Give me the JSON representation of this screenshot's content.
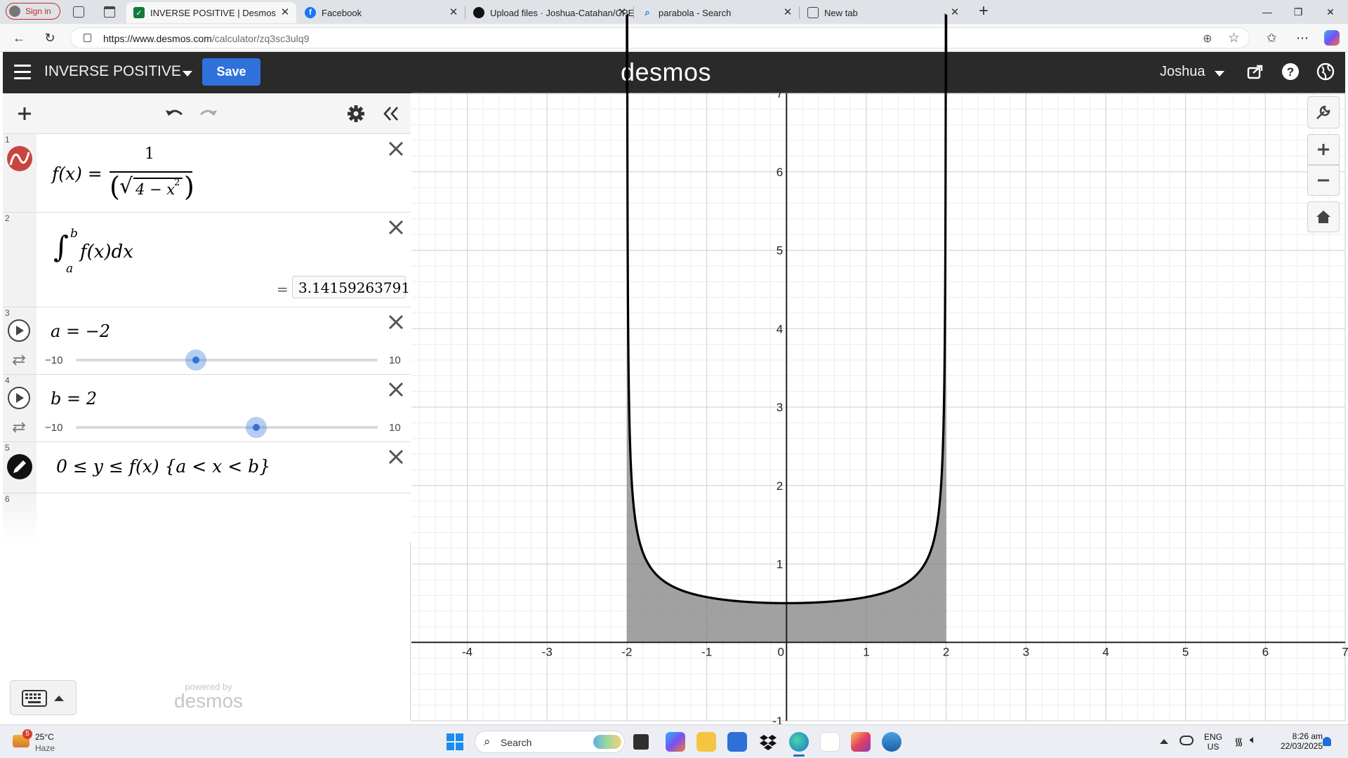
{
  "browser": {
    "sign_in_label": "Sign in",
    "tabs": [
      {
        "title": "INVERSE POSITIVE | Desmos",
        "active": true
      },
      {
        "title": "Facebook",
        "active": false
      },
      {
        "title": "Upload files · Joshua-Catahan/CPE",
        "active": false
      },
      {
        "title": "parabola - Search",
        "active": false
      },
      {
        "title": "New tab",
        "active": false
      }
    ],
    "url_host": "https://www.desmos.com",
    "url_path": "/calculator/zq3sc3ulq9"
  },
  "desmos": {
    "graph_title": "INVERSE POSITIVE",
    "save_label": "Save",
    "logo": "desmos",
    "user_name": "Joshua",
    "powered_by": "powered by",
    "powered_logo": "desmos"
  },
  "expressions": [
    {
      "num": "1",
      "lhs": "f(x) =",
      "numerator": "1",
      "radicand": "4 − x",
      "exponent": "2"
    },
    {
      "num": "2",
      "upper": "b",
      "lower": "a",
      "integrand": "f(x)dx",
      "equals": "=",
      "result": "3.14159263791"
    },
    {
      "num": "3",
      "text": "a = −2",
      "slider_min": "−10",
      "slider_max": "10",
      "value": -2
    },
    {
      "num": "4",
      "text": "b = 2",
      "slider_min": "−10",
      "slider_max": "10",
      "value": 2
    },
    {
      "num": "5",
      "text": "0 ≤ y ≤ f(x) {a < x < b}"
    },
    {
      "num": "6"
    }
  ],
  "graph": {
    "x_ticks": [
      "-4",
      "-3",
      "-2",
      "-1",
      "0",
      "1",
      "2",
      "3",
      "4",
      "5",
      "6",
      "7"
    ],
    "y_ticks": [
      "7",
      "6",
      "5",
      "4",
      "3",
      "2",
      "1",
      "-1"
    ],
    "xlim": [
      -4.7,
      7.0
    ],
    "ylim": [
      -1.0,
      7.0
    ],
    "curve_color": "#000000",
    "shade_color": "#8a8a8a"
  },
  "taskbar": {
    "weather_temp": "25°C",
    "weather_desc": "Haze",
    "weather_badge": "5",
    "search_label": "Search",
    "lang_top": "ENG",
    "lang_bottom": "US",
    "time": "8:26 am",
    "date": "22/03/2025"
  }
}
